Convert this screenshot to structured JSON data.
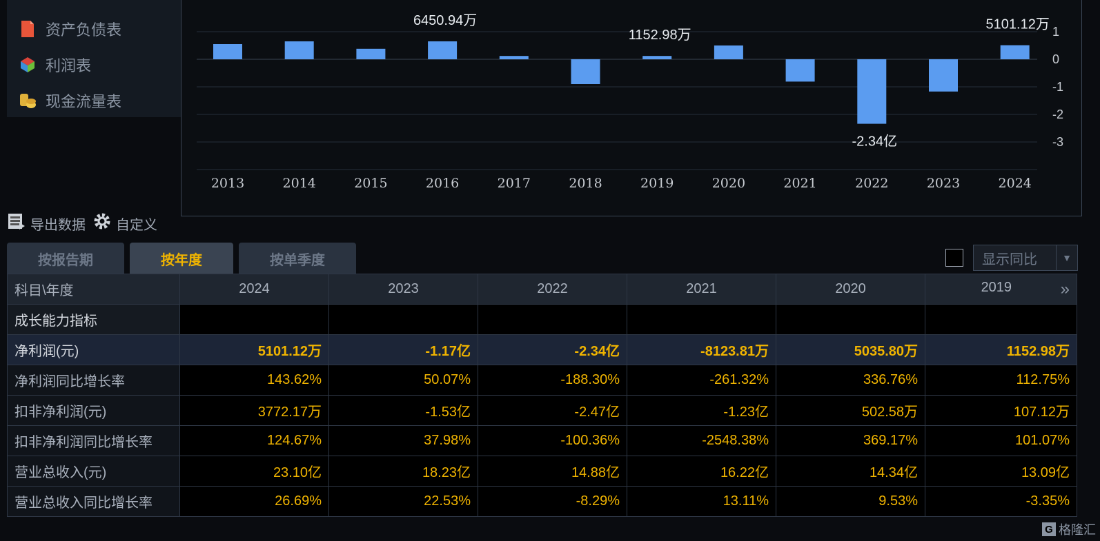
{
  "sidebar": {
    "items": [
      {
        "label": "资产负债表",
        "icon": "balance-sheet-icon"
      },
      {
        "label": "利润表",
        "icon": "income-statement-icon"
      },
      {
        "label": "现金流量表",
        "icon": "cash-flow-icon"
      }
    ]
  },
  "chart_data": {
    "type": "bar",
    "categories": [
      "2013",
      "2014",
      "2015",
      "2016",
      "2017",
      "2018",
      "2019",
      "2020",
      "2021",
      "2022",
      "2023",
      "2024"
    ],
    "values": [
      0.55,
      0.65,
      0.38,
      0.65,
      0.12,
      -0.9,
      0.12,
      0.5,
      -0.81,
      -2.34,
      -1.17,
      0.51
    ],
    "yticks": [
      1,
      0,
      -1,
      -2,
      -3
    ],
    "ylim": [
      -4,
      1.5
    ],
    "data_labels": [
      {
        "category": "2016",
        "text": "6450.94万",
        "position": "top"
      },
      {
        "category": "2019",
        "text": "1152.98万",
        "position": "top"
      },
      {
        "category": "2022",
        "text": "-2.34亿",
        "position": "bottom"
      },
      {
        "category": "2024",
        "text": "5101.12万",
        "position": "top"
      }
    ],
    "bar_color": "#5b9cf0",
    "grid": true
  },
  "toolbar": {
    "export_label": "导出数据",
    "custom_label": "自定义"
  },
  "tabs": [
    {
      "label": "按报告期",
      "active": false
    },
    {
      "label": "按年度",
      "active": true
    },
    {
      "label": "按单季度",
      "active": false
    }
  ],
  "yoy": {
    "label": "显示同比",
    "checked": false
  },
  "table": {
    "header_label": "科目\\年度",
    "years": [
      "2024",
      "2023",
      "2022",
      "2021",
      "2020",
      "2019"
    ],
    "more_icon": "double-chevron-right-icon",
    "rows": [
      {
        "label": "成长能力指标",
        "type": "section",
        "values": [
          "",
          "",
          "",
          "",
          "",
          ""
        ]
      },
      {
        "label": "净利润(元)",
        "type": "highlight",
        "values": [
          "5101.12万",
          "-1.17亿",
          "-2.34亿",
          "-8123.81万",
          "5035.80万",
          "1152.98万"
        ]
      },
      {
        "label": "净利润同比增长率",
        "type": "normal",
        "values": [
          "143.62%",
          "50.07%",
          "-188.30%",
          "-261.32%",
          "336.76%",
          "112.75%"
        ]
      },
      {
        "label": "扣非净利润(元)",
        "type": "normal",
        "values": [
          "3772.17万",
          "-1.53亿",
          "-2.47亿",
          "-1.23亿",
          "502.58万",
          "107.12万"
        ]
      },
      {
        "label": "扣非净利润同比增长率",
        "type": "normal",
        "values": [
          "124.67%",
          "37.98%",
          "-100.36%",
          "-2548.38%",
          "369.17%",
          "101.07%"
        ]
      },
      {
        "label": "营业总收入(元)",
        "type": "normal",
        "values": [
          "23.10亿",
          "18.23亿",
          "14.88亿",
          "16.22亿",
          "14.34亿",
          "13.09亿"
        ]
      },
      {
        "label": "营业总收入同比增长率",
        "type": "normal",
        "values": [
          "26.69%",
          "22.53%",
          "-8.29%",
          "13.11%",
          "9.53%",
          "-3.35%"
        ]
      }
    ]
  },
  "watermark": {
    "badge": "G",
    "text": "格隆汇"
  },
  "colors": {
    "accent": "#f0b400",
    "bar": "#5b9cf0",
    "background": "#0a0c10"
  }
}
